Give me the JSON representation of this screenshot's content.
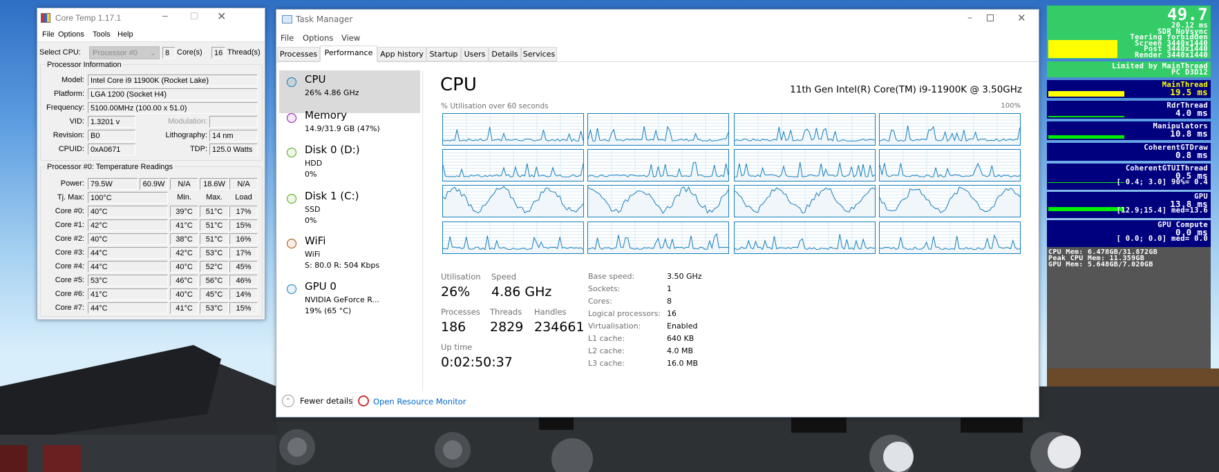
{
  "core_temp": {
    "title": "Core Temp 1.17.1",
    "menu": [
      "File",
      "Options",
      "Tools",
      "Help"
    ],
    "select_cpu_label": "Select CPU:",
    "processor_select": "Processor #0",
    "cores_value": "8",
    "cores_label": "Core(s)",
    "threads_value": "16",
    "threads_label": "Thread(s)",
    "info_group": "Processor Information",
    "model_label": "Model:",
    "model": "Intel Core i9 11900K (Rocket Lake)",
    "platform_label": "Platform:",
    "platform": "LGA 1200 (Socket H4)",
    "frequency_label": "Frequency:",
    "frequency": "5100.00MHz (100.00 x 51.0)",
    "vid_label": "VID:",
    "vid": "1.3201 v",
    "modulation_label": "Modulation:",
    "modulation": "",
    "revision_label": "Revision:",
    "revision": "B0",
    "lithography_label": "Lithography:",
    "lithography": "14 nm",
    "cpuid_label": "CPUID:",
    "cpuid": "0xA0671",
    "tdp_label": "TDP:",
    "tdp": "125.0 Watts",
    "temp_group": "Processor #0: Temperature Readings",
    "power_label": "Power:",
    "power": [
      "79.5W",
      "60.9W",
      "N/A",
      "18.6W",
      "N/A"
    ],
    "tjmax_label": "Tj. Max:",
    "tjmax": "100°C",
    "col_min": "Min.",
    "col_max": "Max.",
    "col_load": "Load",
    "cores": [
      {
        "label": "Core #0:",
        "temp": "40°C",
        "min": "39°C",
        "max": "51°C",
        "load": "17%"
      },
      {
        "label": "Core #1:",
        "temp": "42°C",
        "min": "41°C",
        "max": "51°C",
        "load": "15%"
      },
      {
        "label": "Core #2:",
        "temp": "40°C",
        "min": "38°C",
        "max": "51°C",
        "load": "16%"
      },
      {
        "label": "Core #3:",
        "temp": "44°C",
        "min": "42°C",
        "max": "53°C",
        "load": "17%"
      },
      {
        "label": "Core #4:",
        "temp": "44°C",
        "min": "40°C",
        "max": "52°C",
        "load": "45%"
      },
      {
        "label": "Core #5:",
        "temp": "53°C",
        "min": "46°C",
        "max": "56°C",
        "load": "46%"
      },
      {
        "label": "Core #6:",
        "temp": "41°C",
        "min": "40°C",
        "max": "45°C",
        "load": "14%"
      },
      {
        "label": "Core #7:",
        "temp": "44°C",
        "min": "41°C",
        "max": "53°C",
        "load": "15%"
      }
    ]
  },
  "task_manager": {
    "title": "Task Manager",
    "menu": [
      "File",
      "Options",
      "View"
    ],
    "tabs": [
      "Processes",
      "Performance",
      "App history",
      "Startup",
      "Users",
      "Details",
      "Services"
    ],
    "active_tab": "Performance",
    "sidebar": [
      {
        "name": "CPU",
        "line1": "26% 4.86 GHz",
        "line2": "",
        "color": "#117dbb"
      },
      {
        "name": "Memory",
        "line1": "14.9/31.9 GB (47%)",
        "line2": "",
        "color": "#8b12ae"
      },
      {
        "name": "Disk 0 (D:)",
        "line1": "HDD",
        "line2": "0%",
        "color": "#4da60c"
      },
      {
        "name": "Disk 1 (C:)",
        "line1": "SSD",
        "line2": "0%",
        "color": "#4da60c"
      },
      {
        "name": "WiFi",
        "line1": "WiFi",
        "line2": "S: 80.0  R: 504 Kbps",
        "color": "#a74f01"
      },
      {
        "name": "GPU 0",
        "line1": "NVIDIA GeForce R...",
        "line2": "19%  (65 °C)",
        "color": "#117dbb"
      }
    ],
    "main": {
      "title": "CPU",
      "model": "11th Gen Intel(R) Core(TM) i9-11900K @ 3.50GHz",
      "graph_label": "% Utilisation over 60 seconds",
      "graph_max": "100%",
      "utilisation_label": "Utilisation",
      "utilisation": "26%",
      "speed_label": "Speed",
      "speed": "4.86 GHz",
      "processes_label": "Processes",
      "processes": "186",
      "threads_label": "Threads",
      "threads": "2829",
      "handles_label": "Handles",
      "handles": "234661",
      "uptime_label": "Up time",
      "uptime": "0:02:50:37",
      "details": [
        {
          "label": "Base speed:",
          "value": "3.50 GHz"
        },
        {
          "label": "Sockets:",
          "value": "1"
        },
        {
          "label": "Cores:",
          "value": "8"
        },
        {
          "label": "Logical processors:",
          "value": "16"
        },
        {
          "label": "Virtualisation:",
          "value": "Enabled"
        },
        {
          "label": "L1 cache:",
          "value": "640 KB"
        },
        {
          "label": "L2 cache:",
          "value": "4.0 MB"
        },
        {
          "label": "L3 cache:",
          "value": "16.0 MB"
        }
      ]
    },
    "footer": {
      "fewer_details": "Fewer details",
      "resource_monitor": "Open Resource Monitor"
    }
  },
  "overlay": {
    "fps": "49.7",
    "frame_lines": [
      "20.12 ms",
      "SDR NoVsync",
      "Tearing forbidden",
      "Screen 3440x1440",
      "Post 3440x1440",
      "Render 3440x1440"
    ],
    "limited": [
      "Limited by MainThread",
      "PC D3D12"
    ],
    "blocks": [
      {
        "name": "MainThread",
        "lines": [
          "19.5 ms"
        ],
        "highlight": true
      },
      {
        "name": "RdrThread",
        "lines": [
          "4.0 ms"
        ]
      },
      {
        "name": "Manipulators",
        "lines": [
          "10.8 ms"
        ]
      },
      {
        "name": "CoherentGTDraw",
        "lines": [
          "0.8 ms"
        ]
      },
      {
        "name": "CoherentGTUIThread",
        "lines": [
          "0.5 ms",
          "[ 0.4; 3.0] 90%= 0.4"
        ]
      },
      {
        "name": "GPU",
        "lines": [
          "13.8 ms",
          "[12.9;15.4] med=13.6"
        ]
      },
      {
        "name": "GPU Compute",
        "lines": [
          "0.0 ms",
          "[ 0.0; 0.0] med= 0.0"
        ]
      }
    ],
    "memory": [
      "CPU Mem: 6.478GB/31.872GB",
      "Peak CPU Mem: 11.359GB",
      "GPU Mem: 5.648GB/7.020GB"
    ],
    "colors": {
      "green": "#33cc66",
      "blue": "#00007f",
      "yellow": "#ffff00",
      "bar_green": "#00ee00",
      "gray": "#555555"
    }
  }
}
